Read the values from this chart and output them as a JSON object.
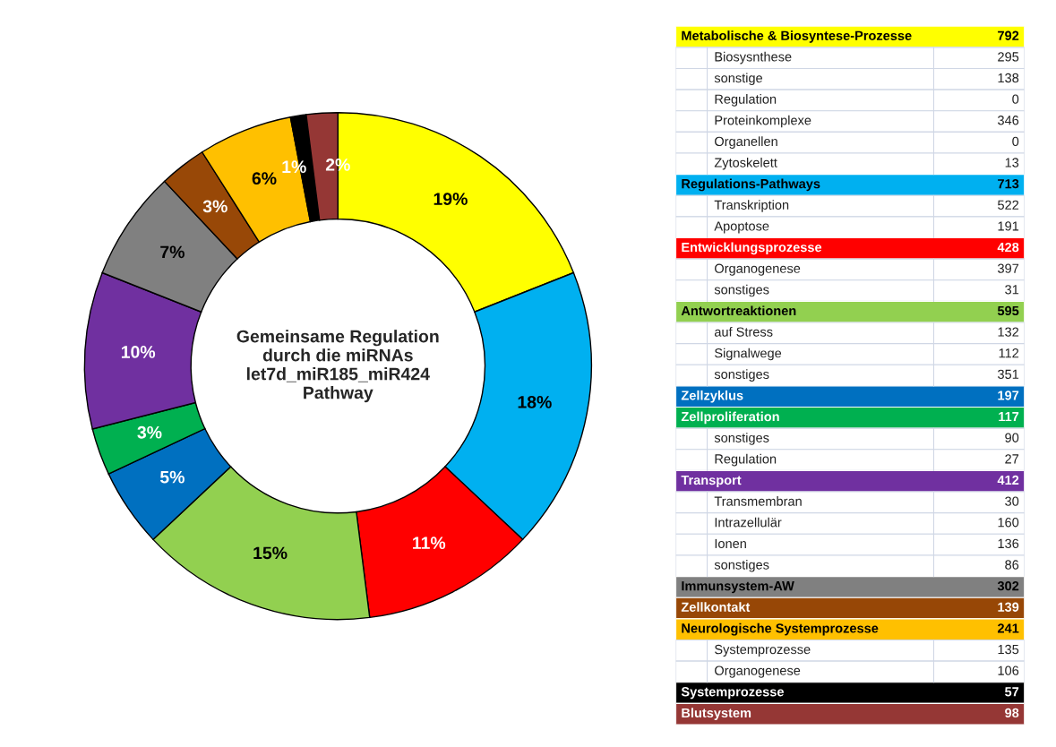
{
  "chart_data": [
    {
      "type": "donut",
      "title": "Gemeinsame Regulation\ndurch die miRNAs\nlet7d_miR185_miR424\nPathway",
      "categories": [
        null,
        null,
        null,
        null,
        null,
        null,
        null,
        null,
        null,
        null,
        null,
        null
      ],
      "values": [
        19,
        18,
        11,
        15,
        5,
        3,
        10,
        7,
        3,
        6,
        1,
        2
      ],
      "colors": [
        "#ffff00",
        "#00b0f0",
        "#ff0000",
        "#92d050",
        "#0070c0",
        "#00b050",
        "#7030a0",
        "#808080",
        "#984807",
        "#ffc000",
        "#000000",
        "#953735"
      ],
      "value_labels": [
        "19%",
        "18%",
        "11%",
        "15%",
        "5%",
        "3%",
        "10%",
        "7%",
        "3%",
        "6%",
        "1%",
        "2%"
      ]
    },
    {
      "type": "other",
      "data_labels": true,
      "categories": [
        "Metabolische & Biosyntese-Prozesse",
        "Biosysnthese",
        "sonstige",
        "Regulation",
        "Proteinkomplexe",
        "Organellen",
        "Zytoskelett",
        "Regulations-Pathways",
        "Transkription",
        "Apoptose",
        "Entwicklungsprozesse",
        "Organogenese",
        "sonstiges",
        "Antwortreaktionen",
        "auf Stress",
        "Signalwege",
        "sonstiges",
        "Zellzyklus",
        "Zellproliferation",
        "sonstiges",
        "Regulation",
        "Transport",
        "Transmembran",
        "Intrazellulär",
        "Ionen",
        "sonstiges",
        "Immunsystem-AW",
        "Zellkontakt",
        "Neurologische Systemprozesse",
        "Systemprozesse",
        "Organogenese",
        "Systemprozesse",
        "Blutsystem"
      ],
      "values": [
        792,
        295,
        138,
        0,
        346,
        0,
        13,
        713,
        522,
        191,
        428,
        397,
        31,
        595,
        132,
        112,
        351,
        197,
        117,
        90,
        27,
        412,
        30,
        160,
        136,
        86,
        302,
        139,
        241,
        135,
        106,
        57,
        98
      ],
      "colors": [
        "#ffff00",
        null,
        null,
        null,
        null,
        null,
        null,
        "#00b0f0",
        null,
        null,
        "#ff0000",
        null,
        null,
        "#92d050",
        null,
        null,
        null,
        "#0070c0",
        "#00b050",
        null,
        null,
        "#7030a0",
        null,
        null,
        null,
        null,
        "#808080",
        "#974706",
        "#ffc000",
        null,
        null,
        "#000000",
        "#953735"
      ]
    }
  ]
}
